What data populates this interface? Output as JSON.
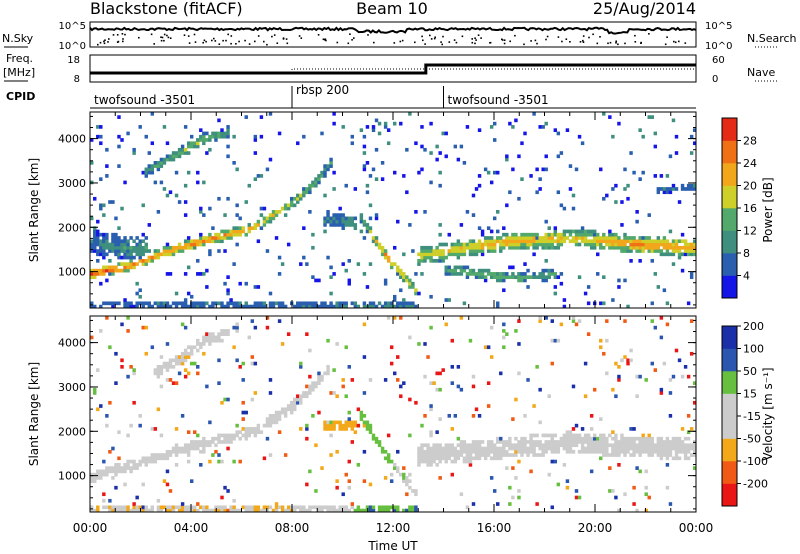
{
  "header": {
    "station": "Blackstone (fitACF)",
    "beam": "Beam 10",
    "date": "25/Aug/2014"
  },
  "left_labels": {
    "nsky": "N.Sky",
    "freq": "Freq.",
    "freq_unit": "[MHz]",
    "cpid": "CPID"
  },
  "right_labels": {
    "nsearch": "N.Search",
    "nave": "Nave"
  },
  "noise_axis": {
    "left_ticks": [
      "10^5",
      "10^0"
    ],
    "right_ticks": [
      "10^5",
      "10^0"
    ]
  },
  "freq_axis": {
    "left_ticks": [
      "18",
      "8"
    ],
    "right_ticks": [
      "60",
      "0"
    ]
  },
  "cpid_segments": [
    {
      "label": "twofsound -3501",
      "start_h": 0,
      "end_h": 8
    },
    {
      "label": "rbsp 200",
      "start_h": 8,
      "end_h": 14
    },
    {
      "label": "twofsound -3501",
      "start_h": 14,
      "end_h": 24
    }
  ],
  "colors": {
    "power": [
      "#1515e8",
      "#2a5fb0",
      "#3f8f7f",
      "#52a96b",
      "#cfcf2a",
      "#f2a61a",
      "#f07015",
      "#e32b16"
    ],
    "velocity": [
      "#ea1616",
      "#f05a14",
      "#f2a818",
      "#cccccc",
      "#cccccc",
      "#66bf3f",
      "#2a56b0",
      "#1a2fa8"
    ]
  },
  "chart_data": [
    {
      "type": "heatmap",
      "quantity": "power",
      "ylabel": "Slant Range [km]",
      "ylim": [
        180,
        4600
      ],
      "yticks": [
        "1000",
        "2000",
        "3000",
        "4000"
      ],
      "xlim_hours": [
        0,
        24
      ],
      "colorbar_label": "Power [dB]",
      "colorbar_ticks": [
        "4",
        "8",
        "12",
        "16",
        "20",
        "24",
        "28"
      ],
      "colorbar_range": [
        0,
        32
      ],
      "features": [
        {
          "name": "main-echo",
          "points_h_km_db": [
            [
              0.0,
              950,
              30
            ],
            [
              1.5,
              1120,
              27
            ],
            [
              3.0,
              1450,
              24
            ],
            [
              4.5,
              1700,
              26
            ],
            [
              6.5,
              2000,
              22
            ],
            [
              8.0,
              2550,
              18
            ],
            [
              9.0,
              3050,
              14
            ],
            [
              9.6,
              3500,
              10
            ]
          ],
          "width_km": 230
        },
        {
          "name": "second-hop",
          "points_h_km_db": [
            [
              2.2,
              3250,
              11
            ],
            [
              3.5,
              3650,
              14
            ],
            [
              4.5,
              4000,
              16
            ],
            [
              5.5,
              4150,
              12
            ]
          ],
          "width_km": 250
        },
        {
          "name": "morning-low",
          "points_h_km_db": [
            [
              0.0,
              1700,
              8
            ],
            [
              1.2,
              1550,
              10
            ],
            [
              2.3,
              1500,
              12
            ]
          ],
          "width_km": 550
        },
        {
          "name": "descending-trace",
          "points_h_km_db": [
            [
              10.7,
              2250,
              11
            ],
            [
              11.2,
              1800,
              19
            ],
            [
              11.8,
              1300,
              25
            ],
            [
              12.5,
              850,
              22
            ],
            [
              12.9,
              550,
              18
            ]
          ],
          "width_km": 230
        },
        {
          "name": "midday-patch",
          "points_h_km_db": [
            [
              9.2,
              2150,
              8
            ],
            [
              9.9,
              2150,
              10
            ],
            [
              10.6,
              2050,
              12
            ]
          ],
          "width_km": 330
        },
        {
          "name": "afternoon-band",
          "points_h_km_db": [
            [
              13.0,
              1350,
              19
            ],
            [
              15.0,
              1550,
              21
            ],
            [
              17.0,
              1700,
              23
            ],
            [
              19.5,
              1750,
              21
            ],
            [
              22.0,
              1600,
              25
            ],
            [
              24.0,
              1550,
              23
            ]
          ],
          "width_km": 380
        },
        {
          "name": "afternoon-lower",
          "points_h_km_db": [
            [
              14.0,
              1050,
              12
            ],
            [
              15.5,
              950,
              15
            ],
            [
              17.0,
              850,
              14
            ],
            [
              18.5,
              950,
              12
            ]
          ],
          "width_km": 230
        },
        {
          "name": "ground-band",
          "points_h_km_db": [
            [
              0.0,
              260,
              8
            ],
            [
              6.0,
              260,
              9
            ],
            [
              12.0,
              240,
              11
            ],
            [
              13.0,
              240,
              10
            ]
          ],
          "width_km": 130
        },
        {
          "name": "evening-high",
          "points_h_km_db": [
            [
              22.5,
              2850,
              8
            ],
            [
              24.0,
              2900,
              9
            ]
          ],
          "width_km": 150
        }
      ]
    },
    {
      "type": "heatmap",
      "quantity": "velocity",
      "ylabel": "Slant Range [km]",
      "ylim": [
        180,
        4600
      ],
      "yticks": [
        "1000",
        "2000",
        "3000",
        "4000"
      ],
      "xlabel": "Time UT",
      "xticks": [
        "00:00",
        "04:00",
        "08:00",
        "12:00",
        "16:00",
        "20:00",
        "00:00"
      ],
      "xlim_hours": [
        0,
        24
      ],
      "colorbar_label": "Velocity [m s⁻¹]",
      "colorbar_ticks": [
        "-200",
        "-100",
        "-50",
        "-15",
        "15",
        "50",
        "100",
        "200"
      ],
      "colorbar_range": [
        -250,
        250
      ],
      "features": [
        {
          "name": "main-echo",
          "points_h_km_ms": [
            [
              0.0,
              950,
              -5
            ],
            [
              2.0,
              1300,
              -5
            ],
            [
              4.0,
              1650,
              -8
            ],
            [
              6.5,
              2000,
              -5
            ],
            [
              8.0,
              2550,
              -10
            ],
            [
              9.5,
              3400,
              -20
            ]
          ],
          "width_km": 240
        },
        {
          "name": "second-hop",
          "points_h_km_ms": [
            [
              2.5,
              3300,
              -30
            ],
            [
              3.5,
              3600,
              -40
            ],
            [
              4.5,
              4050,
              -30
            ],
            [
              5.5,
              4200,
              -20
            ]
          ],
          "width_km": 250
        },
        {
          "name": "descending-trace",
          "points_h_km_ms": [
            [
              10.7,
              2400,
              40
            ],
            [
              11.3,
              1850,
              30
            ],
            [
              11.9,
              1300,
              20
            ],
            [
              12.5,
              900,
              0
            ],
            [
              13.0,
              550,
              -5
            ]
          ],
          "width_km": 200
        },
        {
          "name": "midday-patch",
          "points_h_km_ms": [
            [
              9.2,
              2150,
              -60
            ],
            [
              10.0,
              2150,
              -70
            ],
            [
              10.6,
              2100,
              -60
            ]
          ],
          "width_km": 250
        },
        {
          "name": "afternoon-band",
          "points_h_km_ms": [
            [
              13.0,
              1450,
              -5
            ],
            [
              16.0,
              1600,
              -5
            ],
            [
              19.0,
              1750,
              0
            ],
            [
              22.0,
              1650,
              -8
            ],
            [
              24.0,
              1600,
              -5
            ]
          ],
          "width_km": 480
        },
        {
          "name": "ground-band",
          "points_h_km_ms": [
            [
              0.0,
              250,
              -40
            ],
            [
              8.0,
              250,
              -50
            ],
            [
              11.0,
              250,
              40
            ],
            [
              13.0,
              250,
              50
            ]
          ],
          "width_km": 140
        }
      ]
    }
  ]
}
